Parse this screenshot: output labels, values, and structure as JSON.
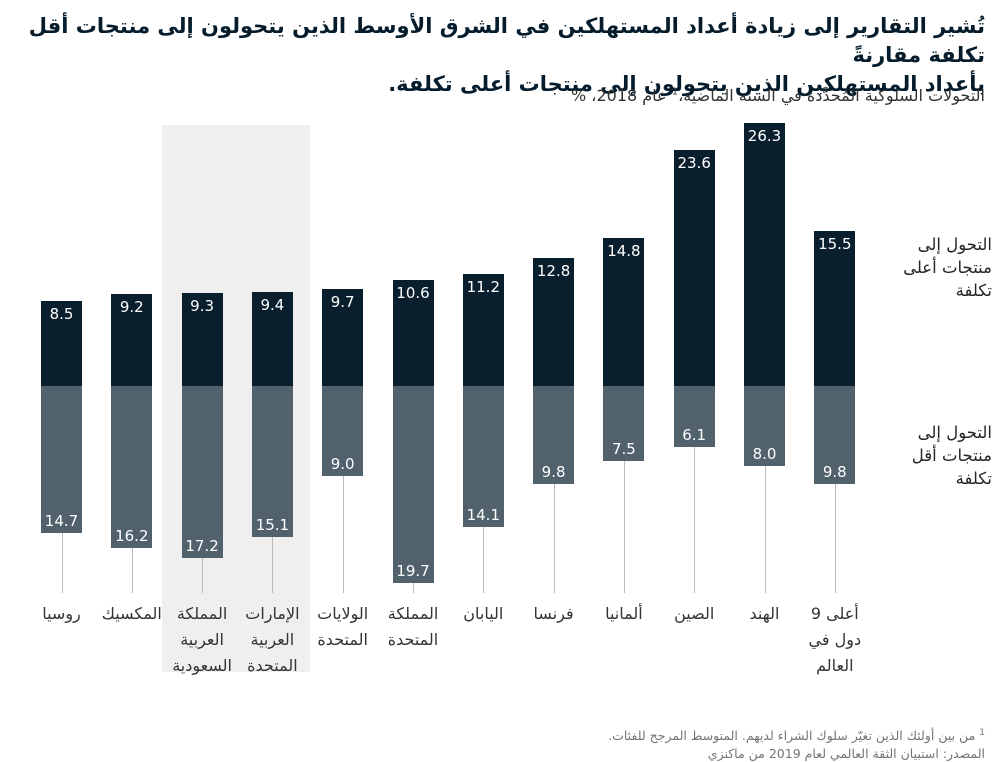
{
  "header": {
    "title_wrapped": "تُشير التقارير إلى زيادة أعداد المستهلكين في الشرق الأوسط الذين يتحولون إلى منتجات أقل تكلفة مقارنةً\nبأعداد المستهلكين الذين يتحولون إلى منتجات أعلى تكلفة.",
    "subtitle_main": "التحولات السلوكية المُحدَّدة في السنة الماضية،",
    "subtitle_footnote_marker": "1",
    "subtitle_rest": "عام 2018، %"
  },
  "footnote": {
    "marker": "1",
    "line1": "من بين أولئك الذين تغيّر سلوك الشراء لديهم. المتوسط المرجح للفئات.",
    "source": "المصدر: استبيان الثقة العالمي لعام 2019 من ماكنزي"
  },
  "chart_data": {
    "type": "bar",
    "subtype": "diverging-vertical-paired",
    "title": "تُشير التقارير إلى زيادة أعداد المستهلكين في الشرق الأوسط الذين يتحولون إلى منتجات أقل تكلفة مقارنةً بأعداد المستهلكين الذين يتحولون إلى منتجات أعلى تكلفة.",
    "subtitle": "التحولات السلوكية المُحدَّدة في السنة الماضية،¹ عام 2018، %",
    "unit": "%",
    "categories": [
      "روسيا",
      "المكسيك",
      "المملكة العربية السعودية",
      "الإمارات العربية المتحدة",
      "الولايات المتحدة",
      "المملكة المتحدة",
      "اليابان",
      "فرنسا",
      "ألمانيا",
      "الصين",
      "الهند",
      "أعلى 9 دول في العالم"
    ],
    "category_labels_wrapped": [
      "روسيا",
      "المكسيك",
      "المملكة\nالعربية\nالسعودية",
      "الإمارات\nالعربية\nالمتحدة",
      "الولايات\nالمتحدة",
      "المملكة\nالمتحدة",
      "اليابان",
      "فرنسا",
      "ألمانيا",
      "الصين",
      "الهند",
      "أعلى 9\nدول في\nالعالم"
    ],
    "series": [
      {
        "name": "التحول إلى منتجات أعلى تكلفة",
        "label_wrapped": "التحول إلى\nمنتجات أعلى\nتكلفة",
        "direction": "up",
        "color": "#0a1f2e",
        "values": [
          8.5,
          9.2,
          9.3,
          9.4,
          9.7,
          10.6,
          11.2,
          12.8,
          14.8,
          23.6,
          26.3,
          15.5
        ]
      },
      {
        "name": "التحول إلى منتجات أقل تكلفة",
        "label_wrapped": "التحول إلى\nمنتجات أقل\nتكلفة",
        "direction": "down",
        "color": "#51626d",
        "values": [
          14.7,
          16.2,
          17.2,
          15.1,
          9.0,
          19.7,
          14.1,
          9.8,
          7.5,
          6.1,
          8.0,
          9.8
        ]
      }
    ],
    "highlighted_categories": [
      "المملكة العربية السعودية",
      "الإمارات العربية المتحدة"
    ],
    "colors": {
      "trade_up_bar": "#0a1f2e",
      "trade_down_bar": "#51626d",
      "highlight_band": "#efefef",
      "connector_line": "#b9b9b9",
      "value_label": "#ffffff",
      "title_text": "#051c2c"
    },
    "value_label_format": "0.0",
    "legend_position": "right",
    "grid": false,
    "axis_hidden": true
  }
}
